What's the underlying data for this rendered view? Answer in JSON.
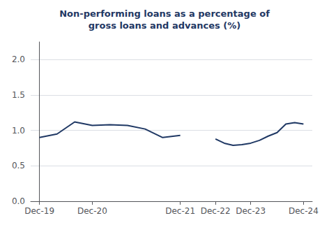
{
  "chart_data": {
    "type": "line",
    "title": "Non-performing loans as a percentage of\ngross loans and advances (%)",
    "series": [
      {
        "color": "#1f3864",
        "x": [
          0,
          2,
          4,
          6,
          8,
          10,
          12,
          14,
          16
        ],
        "values": [
          0.9,
          0.95,
          1.12,
          1.07,
          1.08,
          1.07,
          1.02,
          0.9,
          0.93
        ]
      },
      {
        "color": "#1f3864",
        "x": [
          20,
          21,
          22,
          23,
          24,
          25,
          26,
          27,
          28,
          29,
          30
        ],
        "values": [
          0.88,
          0.82,
          0.79,
          0.8,
          0.82,
          0.86,
          0.92,
          0.97,
          1.09,
          1.11,
          1.09
        ]
      }
    ],
    "xlim": [
      -1,
      31
    ],
    "xticks": [
      {
        "value": 0,
        "label": "Dec-19"
      },
      {
        "value": 6,
        "label": "Dec-20"
      },
      {
        "value": 16,
        "label": "Dec-21"
      },
      {
        "value": 20,
        "label": "Dec-22"
      },
      {
        "value": 24,
        "label": "Dec-23"
      },
      {
        "value": 30,
        "label": "Dec-24"
      }
    ],
    "ylim": [
      0.0,
      2.25
    ],
    "yticks": [
      {
        "value": 0.0,
        "label": "0.0"
      },
      0.5,
      {
        "value": 1.0,
        "label": "1.0"
      },
      1.5,
      {
        "value": 2.0,
        "label": "2.0"
      }
    ],
    "grid": true
  }
}
